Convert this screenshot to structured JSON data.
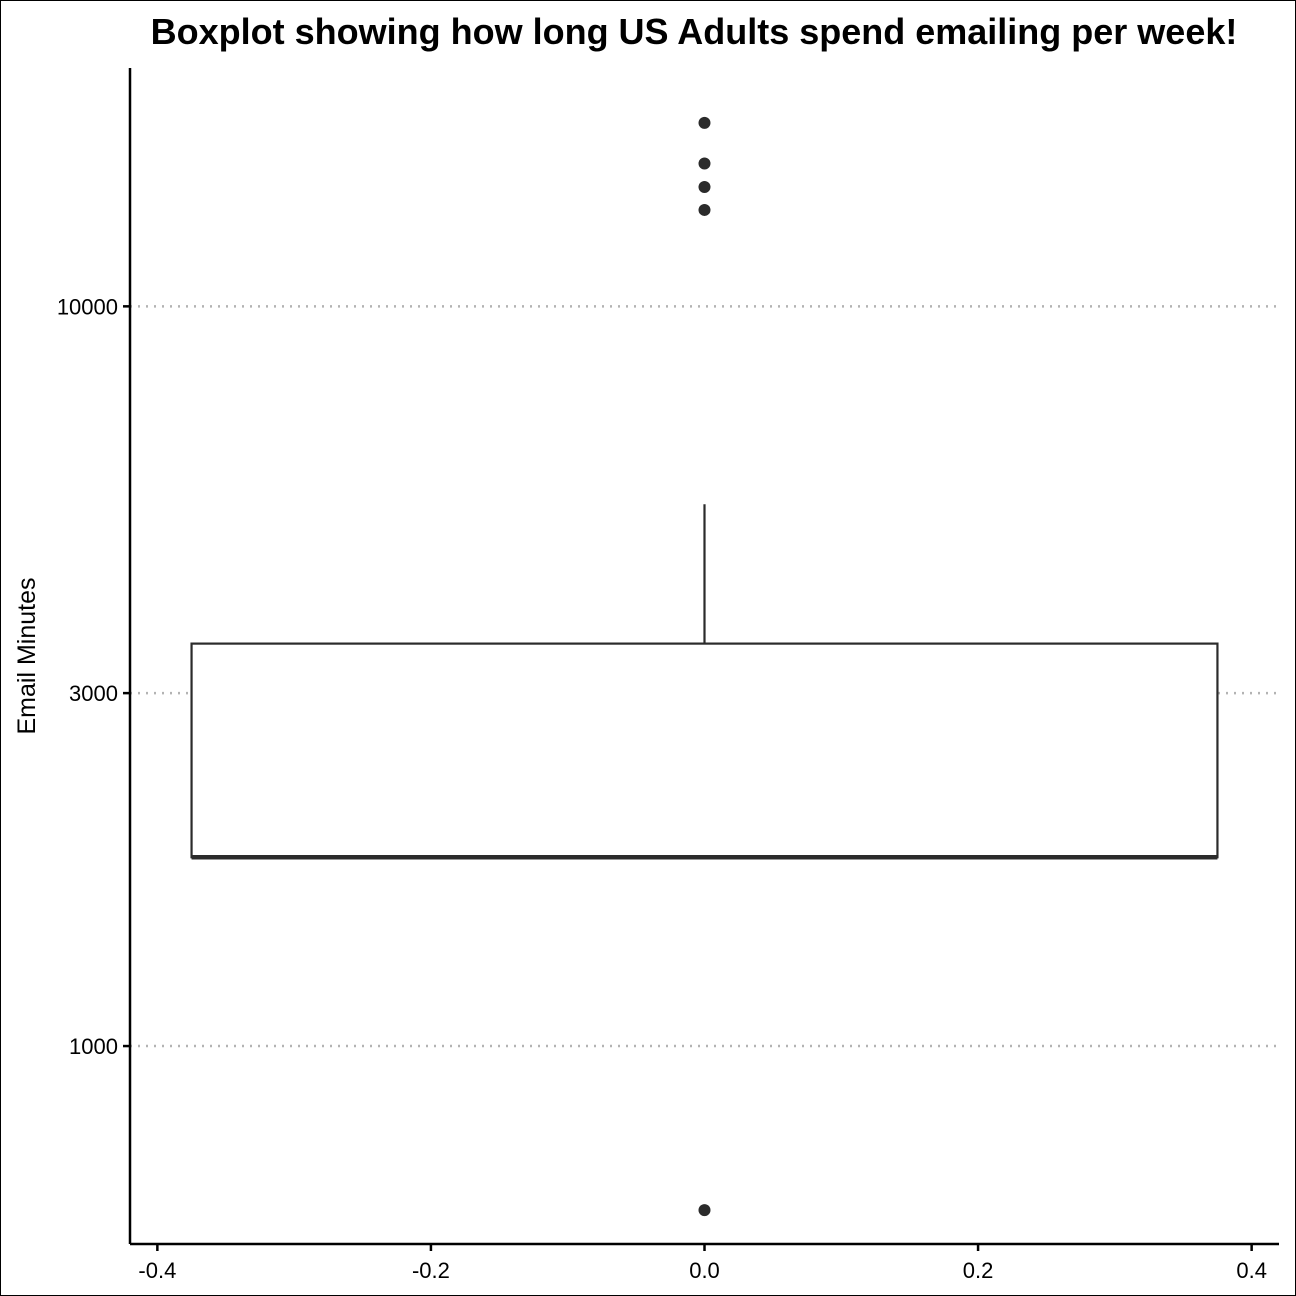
{
  "chart_data": {
    "type": "boxplot",
    "title": "Boxplot showing how long US Adults spend emailing per week!",
    "ylabel": "Email Minutes",
    "xlabel": "",
    "y_scale": "log10",
    "ylim": [
      540,
      21000
    ],
    "xlim": [
      -0.42,
      0.42
    ],
    "y_ticks": [
      1000,
      3000,
      10000
    ],
    "y_tick_labels": [
      "1000",
      "3000",
      "10000"
    ],
    "x_ticks": [
      -0.4,
      -0.2,
      0.0,
      0.2,
      0.4
    ],
    "x_tick_labels": [
      "-0.4",
      "-0.2",
      "0.0",
      "0.2",
      "0.4"
    ],
    "grid": "horizontal dotted at major y ticks",
    "box": {
      "x_center": 0.0,
      "x_min": -0.375,
      "x_max": 0.375,
      "lower_whisker": 1800,
      "q1": 1800,
      "median": 1800,
      "q3": 3500,
      "upper_whisker": 5400
    },
    "outliers": [
      600,
      13500,
      14500,
      15600,
      17700
    ],
    "colors": {
      "box_stroke": "#2b2b2b",
      "point": "#2b2b2b",
      "grid": "#b3b3b3",
      "axis": "#000000"
    }
  }
}
